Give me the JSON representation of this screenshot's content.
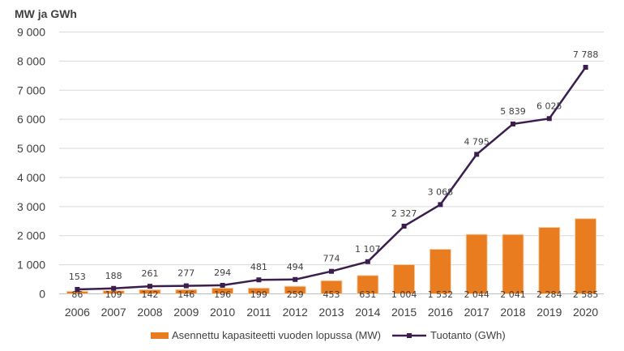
{
  "chart_data": {
    "type": "bar+line",
    "title": "",
    "ylabel": "MW ja GWh",
    "xlabel": "",
    "ylim": [
      0,
      9000
    ],
    "yticks": [
      0,
      1000,
      2000,
      3000,
      4000,
      5000,
      6000,
      7000,
      8000,
      9000
    ],
    "ytick_labels": [
      "0",
      "1 000",
      "2 000",
      "3 000",
      "4 000",
      "5 000",
      "6 000",
      "7 000",
      "8 000",
      "9 000"
    ],
    "categories": [
      "2006",
      "2007",
      "2008",
      "2009",
      "2010",
      "2011",
      "2012",
      "2013",
      "2014",
      "2015",
      "2016",
      "2017",
      "2018",
      "2019",
      "2020"
    ],
    "grid": true,
    "legend_position": "bottom",
    "series": [
      {
        "name": "Asennettu kapasiteetti vuoden lopussa (MW)",
        "kind": "bar",
        "color": "#E87C1E",
        "values": [
          86,
          109,
          142,
          146,
          196,
          199,
          259,
          453,
          631,
          1004,
          1532,
          2044,
          2041,
          2284,
          2585
        ],
        "labels": [
          "86",
          "109",
          "142",
          "146",
          "196",
          "199",
          "259",
          "453",
          "631",
          "1 004",
          "1 532",
          "2 044",
          "2 041",
          "2 284",
          "2 585"
        ]
      },
      {
        "name": "Tuotanto (GWh)",
        "kind": "line",
        "color": "#3B1E4E",
        "values": [
          153,
          188,
          261,
          277,
          294,
          481,
          494,
          774,
          1107,
          2327,
          3068,
          4795,
          5839,
          6025,
          7788
        ],
        "labels": [
          "153",
          "188",
          "261",
          "277",
          "294",
          "481",
          "494",
          "774",
          "1 107",
          "2 327",
          "3 068",
          "4 795",
          "5 839",
          "6 025",
          "7 788"
        ]
      }
    ]
  }
}
